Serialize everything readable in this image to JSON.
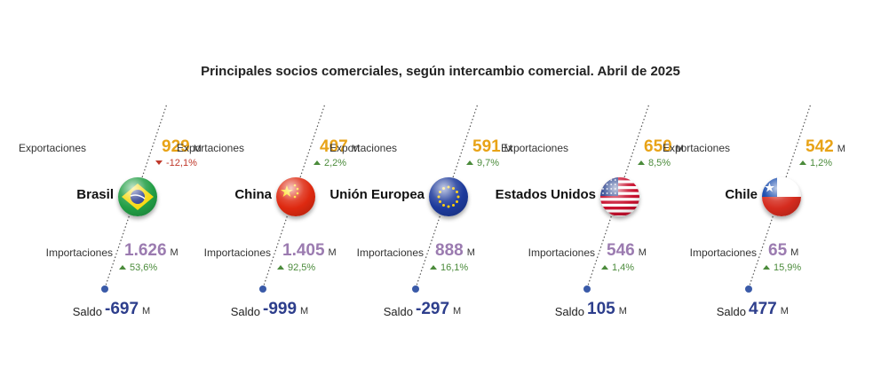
{
  "title": "Principales socios comerciales, según intercambio comercial. Abril de 2025",
  "labels": {
    "exports": "Exportaciones",
    "imports": "Importaciones",
    "balance": "Saldo",
    "unit": "M"
  },
  "colors": {
    "exports": "#e8a317",
    "imports": "#9b7bb0",
    "balance": "#2d3e8c",
    "change_up": "#4b8b3b",
    "change_down": "#c0392b",
    "dotted_line": "#555555"
  },
  "chart_data": {
    "type": "table",
    "title": "Principales socios comerciales, según intercambio comercial. Abril de 2025",
    "unit": "M",
    "partners": [
      {
        "name": "Brasil",
        "flag_icon": "brazil-flag-icon",
        "exports": "929",
        "exports_change": "-12,1%",
        "exports_dir": "down",
        "imports": "1.626",
        "imports_change": "53,6%",
        "imports_dir": "up",
        "balance": "-697"
      },
      {
        "name": "China",
        "flag_icon": "china-flag-icon",
        "exports": "407",
        "exports_change": "2,2%",
        "exports_dir": "up",
        "imports": "1.405",
        "imports_change": "92,5%",
        "imports_dir": "up",
        "balance": "-999"
      },
      {
        "name": "Unión Europea",
        "flag_icon": "eu-flag-icon",
        "exports": "591",
        "exports_change": "9,7%",
        "exports_dir": "up",
        "imports": "888",
        "imports_change": "16,1%",
        "imports_dir": "up",
        "balance": "-297"
      },
      {
        "name": "Estados Unidos",
        "flag_icon": "usa-flag-icon",
        "exports": "650",
        "exports_change": "8,5%",
        "exports_dir": "up",
        "imports": "546",
        "imports_change": "1,4%",
        "imports_dir": "up",
        "balance": "105"
      },
      {
        "name": "Chile",
        "flag_icon": "chile-flag-icon",
        "exports": "542",
        "exports_change": "1,2%",
        "exports_dir": "up",
        "imports": "65",
        "imports_change": "15,9%",
        "imports_dir": "up",
        "balance": "477"
      }
    ]
  }
}
